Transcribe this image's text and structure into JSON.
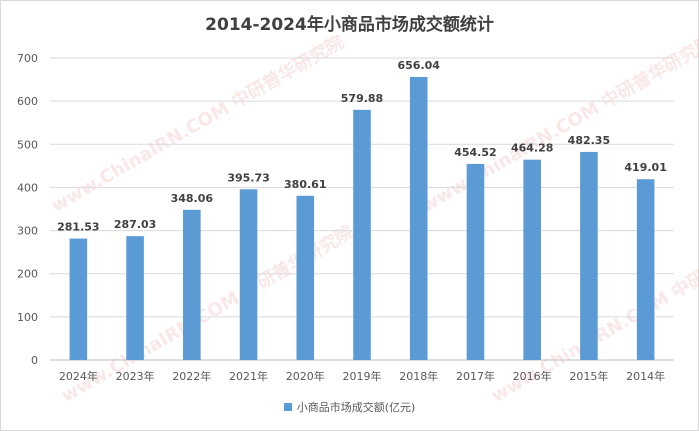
{
  "colors": {
    "bar": "#5b9bd5",
    "grid": "#d9d9d9",
    "axis": "#bfbfbf"
  },
  "watermarks": [
    "www.ChinaIRN.COM 中研普华研究院",
    "www.ChinaIRN.COM 中研普华研究院",
    "www.ChinaIRN.COM 中研普华研究院",
    "www.ChinaIRN.COM 中研普华研究院"
  ],
  "chart_data": {
    "type": "bar",
    "title": "2014-2024年小商品市场成交额统计",
    "categories": [
      "2024年",
      "2023年",
      "2022年",
      "2021年",
      "2020年",
      "2019年",
      "2018年",
      "2017年",
      "2016年",
      "2015年",
      "2014年"
    ],
    "series": [
      {
        "name": "小商品市场成交额(亿元)",
        "values": [
          281.53,
          287.03,
          348.06,
          395.73,
          380.61,
          579.88,
          656.04,
          454.52,
          464.28,
          482.35,
          419.01
        ],
        "labels": [
          "281.53",
          "287.03",
          "348.06",
          "395.73",
          "380.61",
          "579.88",
          "656.04",
          "454.52",
          "464.28",
          "482.35",
          "419.01"
        ]
      }
    ],
    "ylim": [
      0,
      700
    ],
    "yticks": [
      0,
      100,
      200,
      300,
      400,
      500,
      600,
      700
    ],
    "grid": true,
    "legend": "bottom"
  }
}
